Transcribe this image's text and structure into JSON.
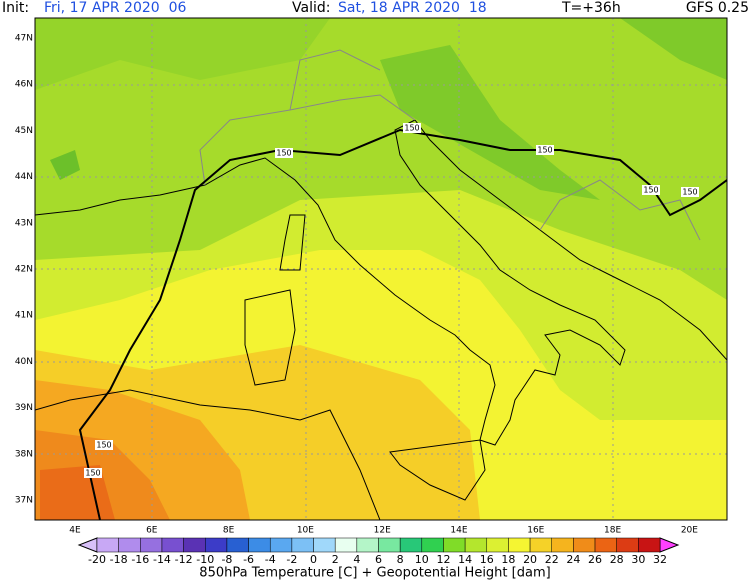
{
  "header": {
    "init_label": "Init:",
    "init": "Fri, 17 APR 2020  06",
    "valid_label": "Valid:",
    "valid": "Sat, 18 APR 2020  18",
    "lead": "T=+36h",
    "model": "GFS 0.25"
  },
  "map": {
    "lat_labels": [
      "47N",
      "46N",
      "45N",
      "44N",
      "43N",
      "42N",
      "41N",
      "40N",
      "39N",
      "38N",
      "37N"
    ],
    "lon_labels": [
      "4E",
      "6E",
      "8E",
      "10E",
      "12E",
      "14E",
      "16E",
      "18E",
      "20E"
    ],
    "contour_labels": [
      "150",
      "150",
      "150",
      "150",
      "150",
      "150",
      "150"
    ]
  },
  "colorbar": {
    "labels": [
      "-20",
      "-18",
      "-16",
      "-14",
      "-12",
      "-10",
      "-8",
      "-6",
      "-4",
      "-2",
      "0",
      "2",
      "4",
      "6",
      "8",
      "10",
      "12",
      "14",
      "16",
      "18",
      "20",
      "22",
      "24",
      "26",
      "28",
      "30",
      "32"
    ],
    "title": "850hPa Temperature [C] + Geopotential Height [dam]"
  }
}
